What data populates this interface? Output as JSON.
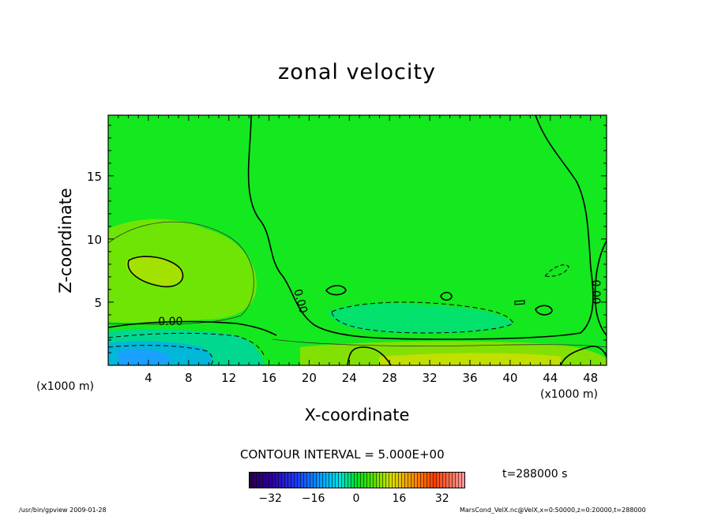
{
  "chart_data": {
    "type": "heatmap",
    "title": "zonal velocity",
    "xlabel": "X-coordinate",
    "ylabel": "Z-coordinate",
    "x_unit": "(x1000 m)",
    "xlim": [
      0,
      49.6
    ],
    "ylim": [
      0,
      19.8
    ],
    "x_ticks": [
      4,
      8,
      12,
      16,
      20,
      24,
      28,
      32,
      36,
      40,
      44,
      48
    ],
    "y_ticks": [
      5,
      10,
      15
    ],
    "contour_interval": "CONTOUR INTERVAL = 5.000E+00",
    "contour_labels": [
      {
        "text": "0.00",
        "x": 6.2,
        "z": 3.2
      },
      {
        "text": "0.00",
        "x": 18.8,
        "z": 5.0
      },
      {
        "text": "0.00",
        "x": 48.2,
        "z": 5.8
      }
    ],
    "colorbar": {
      "ticks": [
        -32,
        -16,
        0,
        16,
        32
      ],
      "range": [
        -40,
        40
      ],
      "colors": [
        "#2a004a",
        "#1a3cff",
        "#00b0ff",
        "#00e020",
        "#d8e000",
        "#ff4000",
        "#ff9aa0"
      ]
    },
    "time_label": "t=288000 s"
  },
  "footer": {
    "left": "/usr/bin/gpview  2009-01-28",
    "right": "MarsCond_VelX.nc@VelX,x=0:50000,z=0:20000,t=288000"
  }
}
